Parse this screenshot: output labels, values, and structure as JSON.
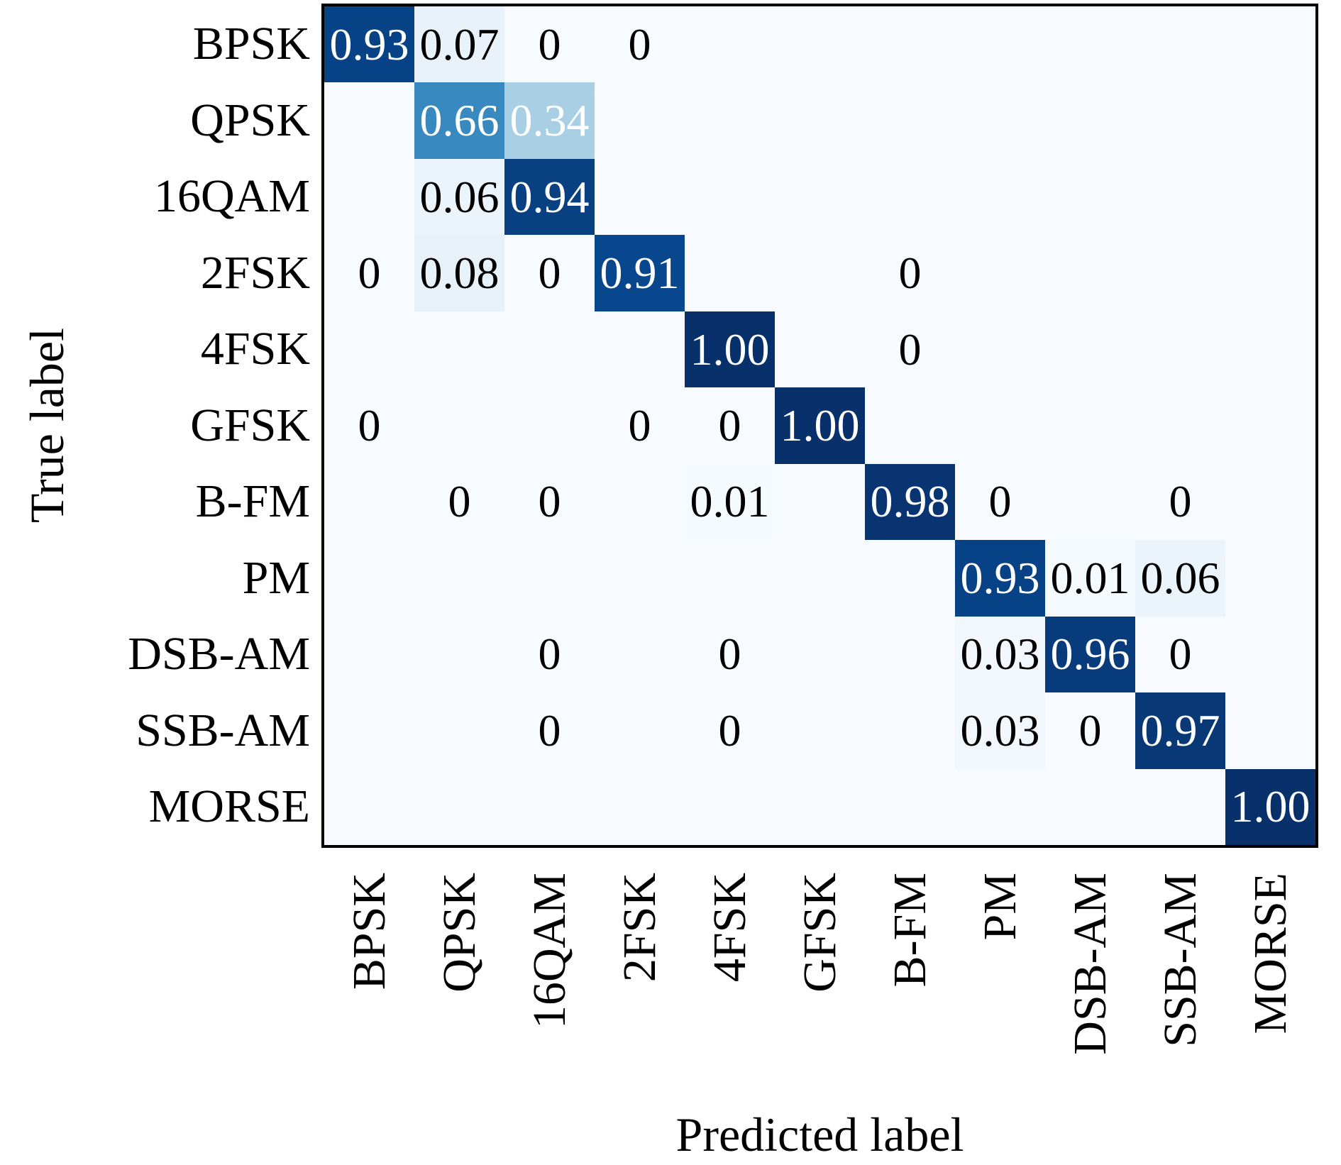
{
  "chart_data": {
    "type": "heatmap",
    "title": "",
    "xlabel": "Predicted label",
    "ylabel": "True label",
    "colormap": "Blues",
    "grid": false,
    "value_range": [
      0,
      1
    ],
    "background_color": "#f7fbff",
    "border_color": "#000000",
    "x_tick_labels": [
      "BPSK",
      "QPSK",
      "16QAM",
      "2FSK",
      "4FSK",
      "GFSK",
      "B-FM",
      "PM",
      "DSB-AM",
      "SSB-AM",
      "MORSE"
    ],
    "y_tick_labels": [
      "BPSK",
      "QPSK",
      "16QAM",
      "2FSK",
      "4FSK",
      "GFSK",
      "B-FM",
      "PM",
      "DSB-AM",
      "SSB-AM",
      "MORSE"
    ],
    "cells": [
      {
        "row": 0,
        "col": 0,
        "label": "0.93",
        "value": 0.93,
        "bg": "#084286",
        "fg": "#ffffff"
      },
      {
        "row": 0,
        "col": 1,
        "label": "0.07",
        "value": 0.07,
        "bg": "#e9f2fb",
        "fg": "#000000"
      },
      {
        "row": 0,
        "col": 2,
        "label": "0",
        "value": 0,
        "bg": "#f7fbff",
        "fg": "#000000"
      },
      {
        "row": 0,
        "col": 3,
        "label": "0",
        "value": 0,
        "bg": "#f7fbff",
        "fg": "#000000"
      },
      {
        "row": 1,
        "col": 1,
        "label": "0.66",
        "value": 0.66,
        "bg": "#3989c1",
        "fg": "#ffffff"
      },
      {
        "row": 1,
        "col": 2,
        "label": "0.34",
        "value": 0.34,
        "bg": "#a9cfe5",
        "fg": "#ffffff"
      },
      {
        "row": 2,
        "col": 1,
        "label": "0.06",
        "value": 0.06,
        "bg": "#ebf3fb",
        "fg": "#000000"
      },
      {
        "row": 2,
        "col": 2,
        "label": "0.94",
        "value": 0.94,
        "bg": "#084082",
        "fg": "#ffffff"
      },
      {
        "row": 3,
        "col": 0,
        "label": "0",
        "value": 0,
        "bg": "#f7fbff",
        "fg": "#000000"
      },
      {
        "row": 3,
        "col": 1,
        "label": "0.08",
        "value": 0.08,
        "bg": "#e7f1fa",
        "fg": "#000000"
      },
      {
        "row": 3,
        "col": 2,
        "label": "0",
        "value": 0,
        "bg": "#f7fbff",
        "fg": "#000000"
      },
      {
        "row": 3,
        "col": 3,
        "label": "0.91",
        "value": 0.91,
        "bg": "#08478d",
        "fg": "#ffffff"
      },
      {
        "row": 3,
        "col": 6,
        "label": "0",
        "value": 0,
        "bg": "#f7fbff",
        "fg": "#000000"
      },
      {
        "row": 4,
        "col": 4,
        "label": "1.00",
        "value": 1.0,
        "bg": "#08306b",
        "fg": "#ffffff"
      },
      {
        "row": 4,
        "col": 6,
        "label": "0",
        "value": 0,
        "bg": "#f7fbff",
        "fg": "#000000"
      },
      {
        "row": 5,
        "col": 0,
        "label": "0",
        "value": 0,
        "bg": "#f7fbff",
        "fg": "#000000"
      },
      {
        "row": 5,
        "col": 3,
        "label": "0",
        "value": 0,
        "bg": "#f7fbff",
        "fg": "#000000"
      },
      {
        "row": 5,
        "col": 4,
        "label": "0",
        "value": 0,
        "bg": "#f7fbff",
        "fg": "#000000"
      },
      {
        "row": 5,
        "col": 5,
        "label": "1.00",
        "value": 1.0,
        "bg": "#08306b",
        "fg": "#ffffff"
      },
      {
        "row": 6,
        "col": 1,
        "label": "0",
        "value": 0,
        "bg": "#f7fbff",
        "fg": "#000000"
      },
      {
        "row": 6,
        "col": 2,
        "label": "0",
        "value": 0,
        "bg": "#f7fbff",
        "fg": "#000000"
      },
      {
        "row": 6,
        "col": 4,
        "label": "0.01",
        "value": 0.01,
        "bg": "#f5fafe",
        "fg": "#000000"
      },
      {
        "row": 6,
        "col": 6,
        "label": "0.98",
        "value": 0.98,
        "bg": "#083572",
        "fg": "#ffffff"
      },
      {
        "row": 6,
        "col": 7,
        "label": "0",
        "value": 0,
        "bg": "#f7fbff",
        "fg": "#000000"
      },
      {
        "row": 6,
        "col": 9,
        "label": "0",
        "value": 0,
        "bg": "#f7fbff",
        "fg": "#000000"
      },
      {
        "row": 7,
        "col": 7,
        "label": "0.93",
        "value": 0.93,
        "bg": "#084286",
        "fg": "#ffffff"
      },
      {
        "row": 7,
        "col": 8,
        "label": "0.01",
        "value": 0.01,
        "bg": "#f5fafe",
        "fg": "#000000"
      },
      {
        "row": 7,
        "col": 9,
        "label": "0.06",
        "value": 0.06,
        "bg": "#ebf3fb",
        "fg": "#000000"
      },
      {
        "row": 8,
        "col": 2,
        "label": "0",
        "value": 0,
        "bg": "#f7fbff",
        "fg": "#000000"
      },
      {
        "row": 8,
        "col": 4,
        "label": "0",
        "value": 0,
        "bg": "#f7fbff",
        "fg": "#000000"
      },
      {
        "row": 8,
        "col": 7,
        "label": "0.03",
        "value": 0.03,
        "bg": "#f1f7fd",
        "fg": "#000000"
      },
      {
        "row": 8,
        "col": 8,
        "label": "0.96",
        "value": 0.96,
        "bg": "#083b7b",
        "fg": "#ffffff"
      },
      {
        "row": 8,
        "col": 9,
        "label": "0",
        "value": 0,
        "bg": "#f7fbff",
        "fg": "#000000"
      },
      {
        "row": 9,
        "col": 2,
        "label": "0",
        "value": 0,
        "bg": "#f7fbff",
        "fg": "#000000"
      },
      {
        "row": 9,
        "col": 4,
        "label": "0",
        "value": 0,
        "bg": "#f7fbff",
        "fg": "#000000"
      },
      {
        "row": 9,
        "col": 7,
        "label": "0.03",
        "value": 0.03,
        "bg": "#f1f7fd",
        "fg": "#000000"
      },
      {
        "row": 9,
        "col": 8,
        "label": "0",
        "value": 0,
        "bg": "#f7fbff",
        "fg": "#000000"
      },
      {
        "row": 9,
        "col": 9,
        "label": "0.97",
        "value": 0.97,
        "bg": "#083876",
        "fg": "#ffffff"
      },
      {
        "row": 10,
        "col": 10,
        "label": "1.00",
        "value": 1.0,
        "bg": "#08306b",
        "fg": "#ffffff"
      }
    ]
  }
}
